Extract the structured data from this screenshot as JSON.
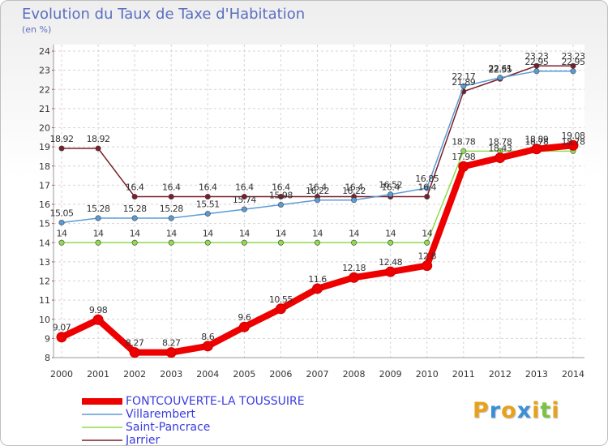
{
  "chart_data": {
    "type": "line",
    "title": "Evolution du Taux de Taxe d'Habitation",
    "ylabel": "(en %)",
    "xlabel": "",
    "ylim": [
      8,
      24
    ],
    "yticks": [
      8,
      9,
      10,
      11,
      12,
      13,
      14,
      15,
      16,
      17,
      18,
      19,
      20,
      21,
      22,
      23,
      24
    ],
    "x": [
      2000,
      2001,
      2002,
      2003,
      2004,
      2005,
      2006,
      2007,
      2008,
      2009,
      2010,
      2011,
      2012,
      2013,
      2014
    ],
    "series": [
      {
        "name": "Jarrier",
        "color": "#7a1f2a",
        "values": [
          18.92,
          18.92,
          16.4,
          16.4,
          16.4,
          16.4,
          16.4,
          16.4,
          16.4,
          16.4,
          16.4,
          21.89,
          22.55,
          23.23,
          23.23
        ]
      },
      {
        "name": "Villarembert",
        "color": "#5b9bd5",
        "values": [
          15.05,
          15.28,
          15.28,
          15.28,
          15.51,
          15.74,
          15.98,
          16.22,
          16.22,
          16.52,
          16.85,
          22.17,
          22.61,
          22.95,
          22.95
        ]
      },
      {
        "name": "Saint-Pancrace",
        "color": "#8fdc4f",
        "values": [
          14,
          14,
          14,
          14,
          14,
          14,
          14,
          14,
          14,
          14,
          14,
          18.78,
          18.78,
          18.78,
          18.78
        ]
      },
      {
        "name": "FONTCOUVERTE-LA TOUSSUIRE",
        "color": "#ee0000",
        "values": [
          9.07,
          9.98,
          8.27,
          8.27,
          8.6,
          9.6,
          10.55,
          11.6,
          12.18,
          12.48,
          12.8,
          17.98,
          18.43,
          18.89,
          19.08
        ]
      }
    ],
    "legend": [
      "FONTCOUVERTE-LA TOUSSUIRE",
      "Villarembert",
      "Saint-Pancrace",
      "Jarrier"
    ],
    "legend_position": "bottom-left"
  },
  "logo": {
    "text": "Proxiti",
    "colors": [
      "#e8a11a",
      "#3a8fd8",
      "#e8a11a",
      "#3a8fd8",
      "#e8a11a",
      "#7cc242",
      "#e8a11a"
    ]
  }
}
